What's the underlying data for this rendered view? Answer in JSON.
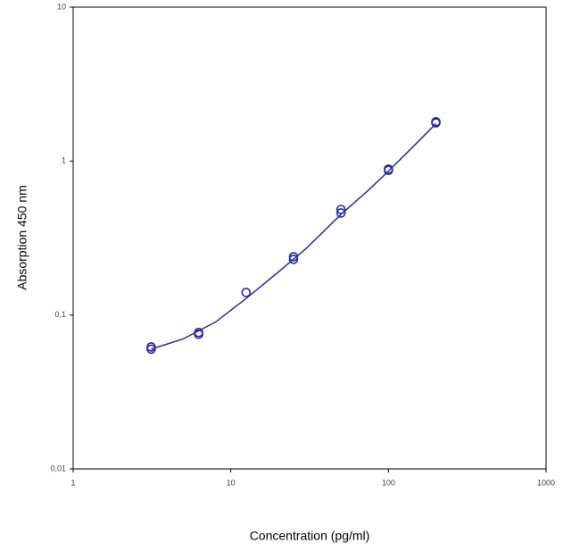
{
  "chart_data": {
    "type": "scatter",
    "xlabel": "Concentration (pg/ml)",
    "ylabel": "Absorption 450 nm",
    "xscale": "log",
    "yscale": "log",
    "xlim": [
      1,
      1000
    ],
    "ylim": [
      0.01,
      10
    ],
    "xticks": [
      1,
      10,
      100,
      1000
    ],
    "yticks": [
      {
        "value": 0.01,
        "label": "0,01"
      },
      {
        "value": 0.1,
        "label": "0,1"
      },
      1,
      10
    ],
    "series": [
      {
        "mode": "markers",
        "color": "#2b2ba3",
        "x": [
          3.125,
          3.125,
          6.25,
          6.25,
          12.5,
          25,
          25,
          50,
          50,
          100,
          100,
          200,
          200
        ],
        "values": [
          0.062,
          0.06,
          0.077,
          0.075,
          0.14,
          0.239,
          0.23,
          0.485,
          0.46,
          0.886,
          0.87,
          1.8,
          1.77
        ]
      },
      {
        "mode": "line",
        "color": "#2b2ba3",
        "x": [
          3.125,
          5,
          8,
          12.5,
          20,
          30,
          50,
          75,
          100,
          150,
          200
        ],
        "values": [
          0.06,
          0.07,
          0.09,
          0.128,
          0.19,
          0.27,
          0.45,
          0.65,
          0.86,
          1.3,
          1.75
        ]
      }
    ]
  }
}
